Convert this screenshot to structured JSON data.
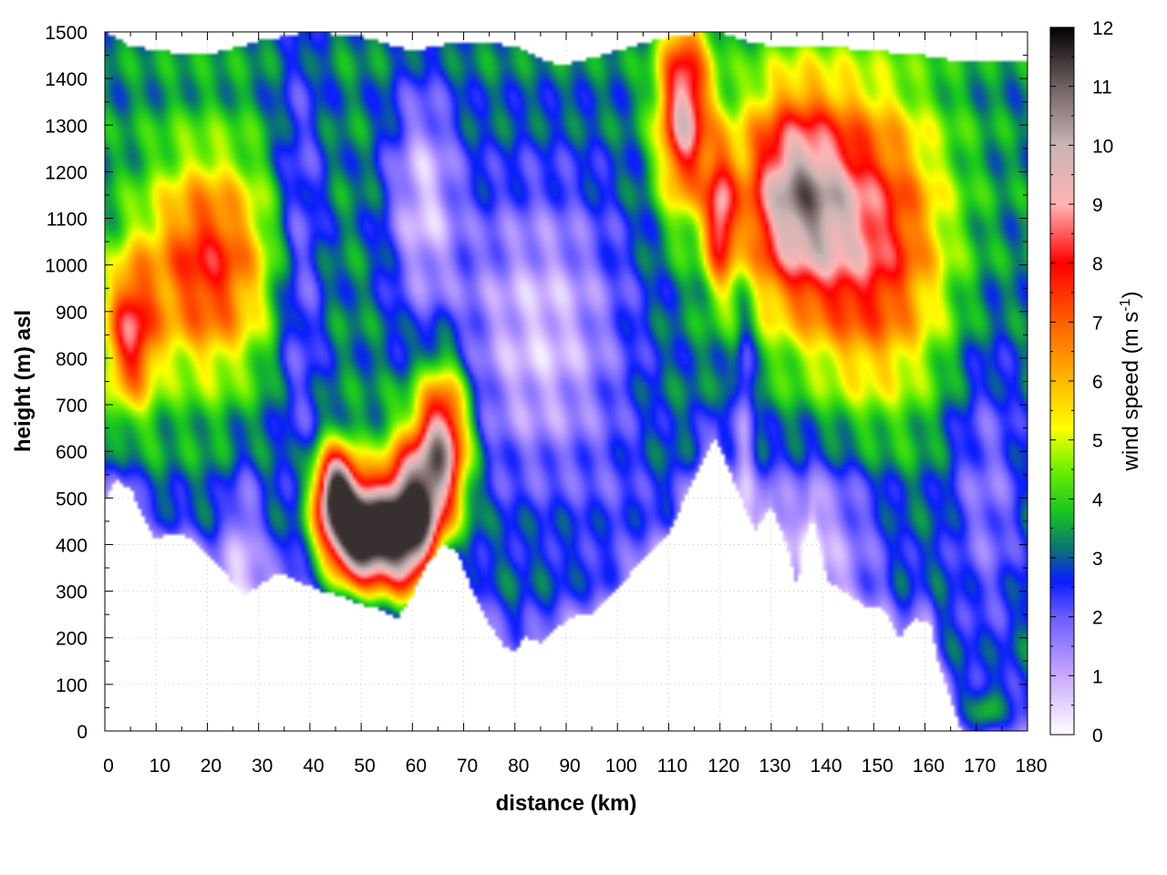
{
  "chart_data": {
    "type": "heatmap",
    "title": "",
    "xlabel": "distance (km)",
    "ylabel": "height (m) asl",
    "colorbar_label": "wind speed (m s",
    "colorbar_label_sup": "-1",
    "colorbar_label_end": ")",
    "xlim": [
      0,
      180
    ],
    "ylim": [
      0,
      1500
    ],
    "zlim": [
      0,
      12
    ],
    "x_ticks": [
      0,
      10,
      20,
      30,
      40,
      50,
      60,
      70,
      80,
      90,
      100,
      110,
      120,
      130,
      140,
      150,
      160,
      170,
      180
    ],
    "y_ticks": [
      0,
      100,
      200,
      300,
      400,
      500,
      600,
      700,
      800,
      900,
      1000,
      1100,
      1200,
      1300,
      1400,
      1500
    ],
    "z_ticks": [
      0,
      1,
      2,
      3,
      4,
      5,
      6,
      7,
      8,
      9,
      10,
      11,
      12
    ],
    "grid": true,
    "colormap": [
      [
        0,
        "#ffffff"
      ],
      [
        1,
        "#c8a8ff"
      ],
      [
        2,
        "#6a5cff"
      ],
      [
        2.6,
        "#0a1cff"
      ],
      [
        3.2,
        "#0a7a6a"
      ],
      [
        3.8,
        "#19c81e"
      ],
      [
        4.5,
        "#6ef000"
      ],
      [
        5.2,
        "#ffff00"
      ],
      [
        6,
        "#ffb800"
      ],
      [
        7,
        "#ff6000"
      ],
      [
        8,
        "#ff0000"
      ],
      [
        9,
        "#ffb4b4"
      ],
      [
        10,
        "#c8b4b4"
      ],
      [
        11,
        "#706060"
      ],
      [
        12,
        "#000000"
      ]
    ],
    "terrain": {
      "x": [
        0,
        2,
        5,
        8,
        10,
        12,
        15,
        18,
        20,
        24,
        27,
        30,
        34,
        38,
        42,
        46,
        50,
        54,
        57,
        60,
        63,
        66,
        69,
        72,
        75,
        78,
        80,
        82,
        85,
        88,
        92,
        95,
        98,
        102,
        106,
        110,
        114,
        118,
        119,
        121,
        124,
        127,
        130,
        133,
        135,
        138,
        141,
        144,
        148,
        152,
        155,
        158,
        161,
        163,
        165,
        167,
        170,
        180
      ],
      "y": [
        490,
        540,
        520,
        450,
        410,
        420,
        425,
        400,
        380,
        330,
        290,
        310,
        340,
        320,
        300,
        290,
        270,
        260,
        240,
        290,
        360,
        400,
        380,
        290,
        230,
        180,
        170,
        200,
        190,
        220,
        250,
        250,
        280,
        330,
        380,
        420,
        520,
        610,
        630,
        580,
        500,
        430,
        480,
        400,
        310,
        460,
        320,
        300,
        270,
        260,
        200,
        240,
        230,
        130,
        70,
        0,
        0,
        0
      ]
    },
    "top": {
      "x": [
        0,
        5,
        10,
        20,
        30,
        40,
        50,
        60,
        70,
        80,
        88,
        90,
        100,
        110,
        118,
        120,
        125,
        130,
        140,
        150,
        160,
        165,
        180
      ],
      "y": [
        1500,
        1470,
        1460,
        1450,
        1480,
        1500,
        1490,
        1460,
        1480,
        1470,
        1430,
        1430,
        1460,
        1490,
        1500,
        1500,
        1480,
        1470,
        1470,
        1460,
        1450,
        1440,
        1440
      ]
    },
    "wind_features": [
      {
        "x": 50,
        "y": 420,
        "sx": 7,
        "sy": 110,
        "speed": 10
      },
      {
        "x": 60,
        "y": 450,
        "sx": 6,
        "sy": 160,
        "speed": 8.5
      },
      {
        "x": 45,
        "y": 520,
        "sx": 4,
        "sy": 90,
        "speed": 7
      },
      {
        "x": 66,
        "y": 620,
        "sx": 5,
        "sy": 160,
        "speed": 6.5
      },
      {
        "x": 20,
        "y": 1000,
        "sx": 12,
        "sy": 230,
        "speed": 4.6
      },
      {
        "x": 5,
        "y": 850,
        "sx": 5,
        "sy": 160,
        "speed": 4.6
      },
      {
        "x": 134,
        "y": 1150,
        "sx": 11,
        "sy": 230,
        "speed": 6.1
      },
      {
        "x": 113,
        "y": 1330,
        "sx": 5,
        "sy": 200,
        "speed": 6.2
      },
      {
        "x": 120,
        "y": 1100,
        "sx": 3,
        "sy": 150,
        "speed": 4.5
      },
      {
        "x": 150,
        "y": 1050,
        "sx": 14,
        "sy": 320,
        "speed": 4.8
      },
      {
        "x": 85,
        "y": 850,
        "sx": 18,
        "sy": 350,
        "speed": -2.6
      },
      {
        "x": 62,
        "y": 1150,
        "sx": 7,
        "sy": 250,
        "speed": -2.4
      },
      {
        "x": 27,
        "y": 400,
        "sx": 4,
        "sy": 180,
        "speed": -2.0
      },
      {
        "x": 140,
        "y": 450,
        "sx": 14,
        "sy": 180,
        "speed": -1.9
      },
      {
        "x": 172,
        "y": 500,
        "sx": 8,
        "sy": 350,
        "speed": -1.6
      },
      {
        "x": 172,
        "y": 40,
        "sx": 3,
        "sy": 50,
        "speed": 1.6
      },
      {
        "x": 125,
        "y": 700,
        "sx": 2,
        "sy": 250,
        "speed": -1.7
      },
      {
        "x": 100,
        "y": 500,
        "sx": 8,
        "sy": 150,
        "speed": -0.5
      },
      {
        "x": 38,
        "y": 1000,
        "sx": 5,
        "sy": 500,
        "speed": -1.6
      }
    ]
  }
}
